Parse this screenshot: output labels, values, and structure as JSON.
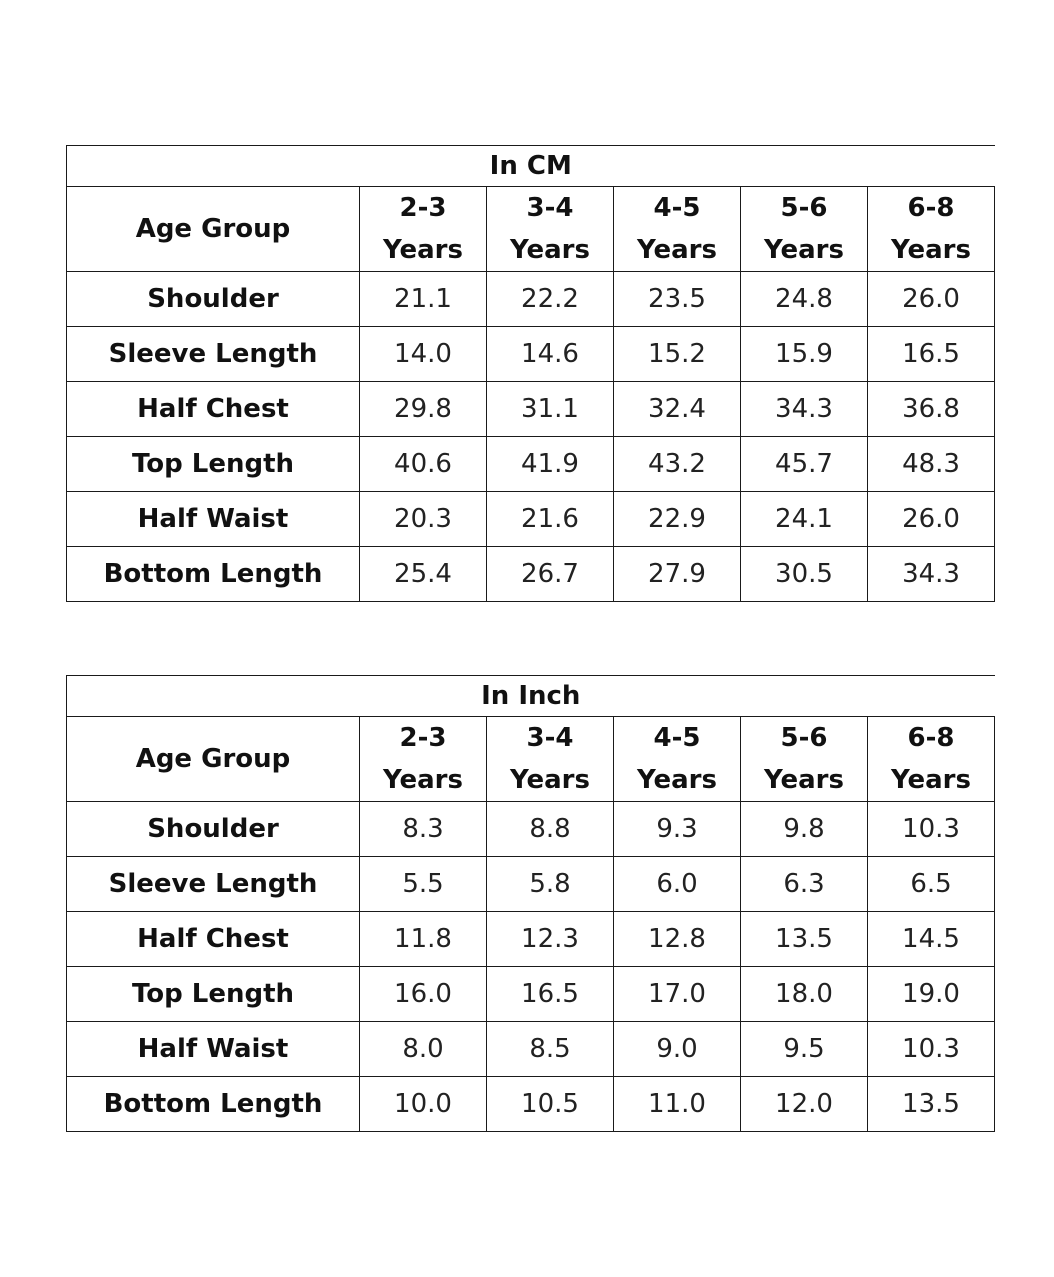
{
  "cm_table": {
    "caption": "In CM",
    "header_label": "Age Group",
    "age_groups": [
      {
        "range": "2-3",
        "unit": "Years"
      },
      {
        "range": "3-4",
        "unit": "Years"
      },
      {
        "range": "4-5",
        "unit": "Years"
      },
      {
        "range": "5-6",
        "unit": "Years"
      },
      {
        "range": "6-8",
        "unit": "Years"
      }
    ],
    "rows": [
      {
        "label": "Shoulder",
        "values": [
          "21.1",
          "22.2",
          "23.5",
          "24.8",
          "26.0"
        ]
      },
      {
        "label": "Sleeve Length",
        "values": [
          "14.0",
          "14.6",
          "15.2",
          "15.9",
          "16.5"
        ]
      },
      {
        "label": "Half Chest",
        "values": [
          "29.8",
          "31.1",
          "32.4",
          "34.3",
          "36.8"
        ]
      },
      {
        "label": "Top Length",
        "values": [
          "40.6",
          "41.9",
          "43.2",
          "45.7",
          "48.3"
        ]
      },
      {
        "label": "Half Waist",
        "values": [
          "20.3",
          "21.6",
          "22.9",
          "24.1",
          "26.0"
        ]
      },
      {
        "label": "Bottom Length",
        "values": [
          "25.4",
          "26.7",
          "27.9",
          "30.5",
          "34.3"
        ]
      }
    ]
  },
  "inch_table": {
    "caption": "In Inch",
    "header_label": "Age Group",
    "age_groups": [
      {
        "range": "2-3",
        "unit": "Years"
      },
      {
        "range": "3-4",
        "unit": "Years"
      },
      {
        "range": "4-5",
        "unit": "Years"
      },
      {
        "range": "5-6",
        "unit": "Years"
      },
      {
        "range": "6-8",
        "unit": "Years"
      }
    ],
    "rows": [
      {
        "label": "Shoulder",
        "values": [
          "8.3",
          "8.8",
          "9.3",
          "9.8",
          "10.3"
        ]
      },
      {
        "label": "Sleeve Length",
        "values": [
          "5.5",
          "5.8",
          "6.0",
          "6.3",
          "6.5"
        ]
      },
      {
        "label": "Half Chest",
        "values": [
          "11.8",
          "12.3",
          "12.8",
          "13.5",
          "14.5"
        ]
      },
      {
        "label": "Top Length",
        "values": [
          "16.0",
          "16.5",
          "17.0",
          "18.0",
          "19.0"
        ]
      },
      {
        "label": "Half Waist",
        "values": [
          "8.0",
          "8.5",
          "9.0",
          "9.5",
          "10.3"
        ]
      },
      {
        "label": "Bottom Length",
        "values": [
          "10.0",
          "10.5",
          "11.0",
          "12.0",
          "13.5"
        ]
      }
    ]
  }
}
